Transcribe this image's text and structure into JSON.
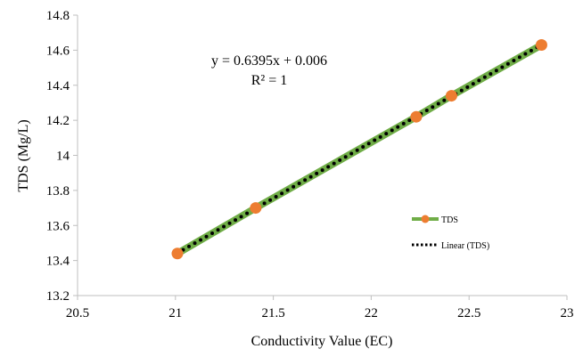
{
  "chart_data": {
    "type": "scatter",
    "xlabel": "Conductivity Value (EC)",
    "ylabel": "TDS (Mg/L)",
    "xlim": [
      20.5,
      23
    ],
    "ylim": [
      13.2,
      14.8
    ],
    "x_ticks": [
      20.5,
      21,
      21.5,
      22,
      22.5,
      23
    ],
    "y_ticks": [
      13.2,
      13.4,
      13.6,
      13.8,
      14,
      14.2,
      14.4,
      14.6,
      14.8
    ],
    "x_tick_labels": [
      "20.5",
      "21",
      "21.5",
      "22",
      "22.5",
      "23"
    ],
    "y_tick_labels": [
      "13.2",
      "13.4",
      "13.6",
      "13.8",
      "14",
      "14.2",
      "14.4",
      "14.6",
      "14.8"
    ],
    "grid": false,
    "legend_position": "right",
    "series": [
      {
        "name": "TDS",
        "color": "#70ad47",
        "marker_color": "#ed7d31",
        "x": [
          21.01,
          21.41,
          22.23,
          22.41,
          22.87
        ],
        "y": [
          13.44,
          13.7,
          14.22,
          14.34,
          14.63
        ]
      }
    ],
    "trendline": {
      "name": "Linear (TDS)",
      "slope": 0.6395,
      "intercept": 0.006,
      "x_range": [
        21.01,
        22.87
      ],
      "color": "#000000"
    },
    "annotations": {
      "equation": "y = 0.6395x + 0.006",
      "r_squared": "R² = 1"
    }
  }
}
